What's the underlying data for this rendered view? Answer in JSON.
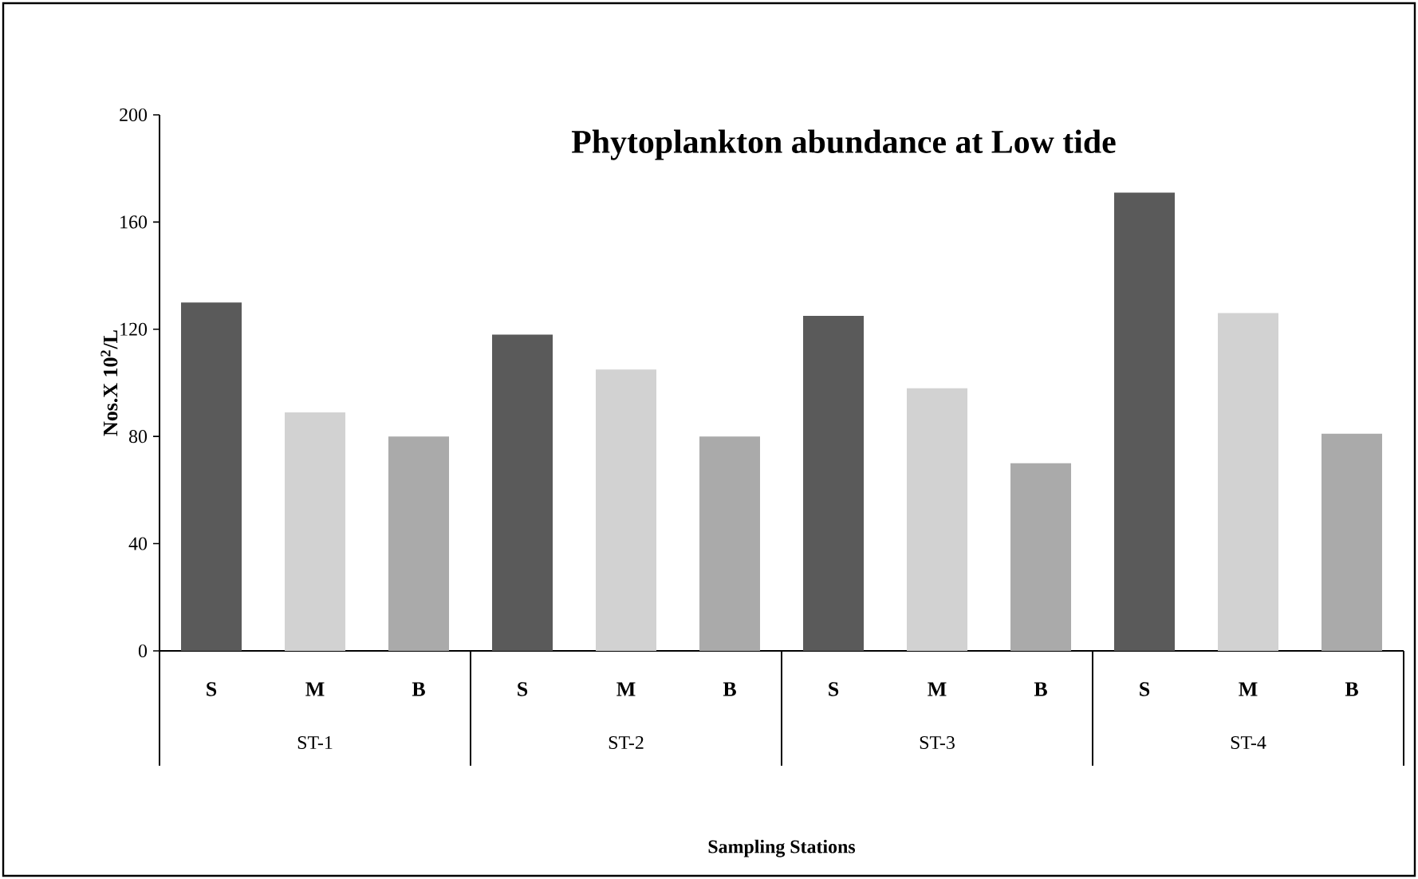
{
  "chart_data": {
    "type": "bar",
    "title": "Phytoplankton abundance at Low tide",
    "xlabel": "Sampling Stations",
    "ylabel": "Nos.X 10$^{2}$/L",
    "categories": [
      "ST-1",
      "ST-2",
      "ST-3",
      "ST-4"
    ],
    "series": [
      {
        "name": "S",
        "color": "#5a5a5a",
        "values": [
          130,
          118,
          125,
          171
        ]
      },
      {
        "name": "M",
        "color": "#d2d2d2",
        "values": [
          89,
          105,
          98,
          126
        ]
      },
      {
        "name": "B",
        "color": "#aaaaaa",
        "values": [
          80,
          80,
          70,
          81
        ]
      }
    ],
    "ylim": [
      0,
      200
    ],
    "yticks": [
      0,
      40,
      80,
      120,
      160,
      200
    ]
  }
}
